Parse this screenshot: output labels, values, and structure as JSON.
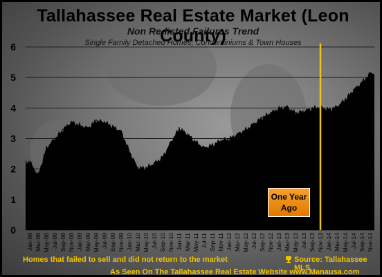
{
  "chart_data": {
    "type": "area",
    "title": "Tallahassee Real Estate Market (Leon County)",
    "subtitle": "Non Re-listed Failures Trend",
    "note": "Single Family Detached Homes, Condominiums & Town Houses",
    "ylim": [
      0,
      6
    ],
    "yticks": [
      "0",
      "1",
      "2",
      "3",
      "4",
      "5",
      "6"
    ],
    "grid": true,
    "x_labels": [
      "Jan-08",
      "Mar-08",
      "May-08",
      "Jul-08",
      "Sep-08",
      "Nov-08",
      "Jan-09",
      "Mar-09",
      "May-09",
      "Jul-09",
      "Sep-09",
      "Nov-09",
      "Jan-10",
      "Mar-10",
      "May-10",
      "Jul-10",
      "Sep-10",
      "Nov-10",
      "Jan-11",
      "Mar-11",
      "May-11",
      "Jul-11",
      "Sep-11",
      "Nov-11",
      "Jan-12",
      "Mar-12",
      "May-12",
      "Jul-12",
      "Sep-12",
      "Nov-12",
      "Jan-13",
      "Mar-13",
      "May-13",
      "Jul-13",
      "Sep-13",
      "Nov-13",
      "Jan-14",
      "Mar-14",
      "May-14",
      "Jul-14",
      "Sep-14",
      "Nov-14"
    ],
    "series": [
      {
        "values": [
          2.25,
          1.8,
          2.7,
          3.0,
          3.3,
          3.55,
          3.45,
          3.35,
          3.6,
          3.55,
          3.4,
          3.25,
          2.6,
          2.05,
          2.05,
          2.2,
          2.4,
          2.9,
          3.35,
          3.15,
          2.9,
          2.7,
          2.8,
          2.95,
          3.0,
          3.15,
          3.3,
          3.5,
          3.7,
          3.85,
          4.0,
          4.05,
          3.85,
          3.9,
          4.0,
          4.05,
          3.95,
          4.05,
          4.3,
          4.6,
          4.85,
          5.15
        ]
      }
    ],
    "annotation": {
      "label_line1": "One Year",
      "label_line2": "Ago",
      "x_category": "Nov-13",
      "line_color": "#f0c419"
    },
    "area_color": "#000000",
    "gridline_color": "#222222"
  },
  "footer": {
    "left_text": "Homes that failed to sell and did not return to the market",
    "source_text": "Source: Tallahassee MLS",
    "website_text": "As Seen On The Tallahassee Real Estate Website ",
    "website_link": "www.Manausa.com",
    "accent": "#f0c400"
  }
}
